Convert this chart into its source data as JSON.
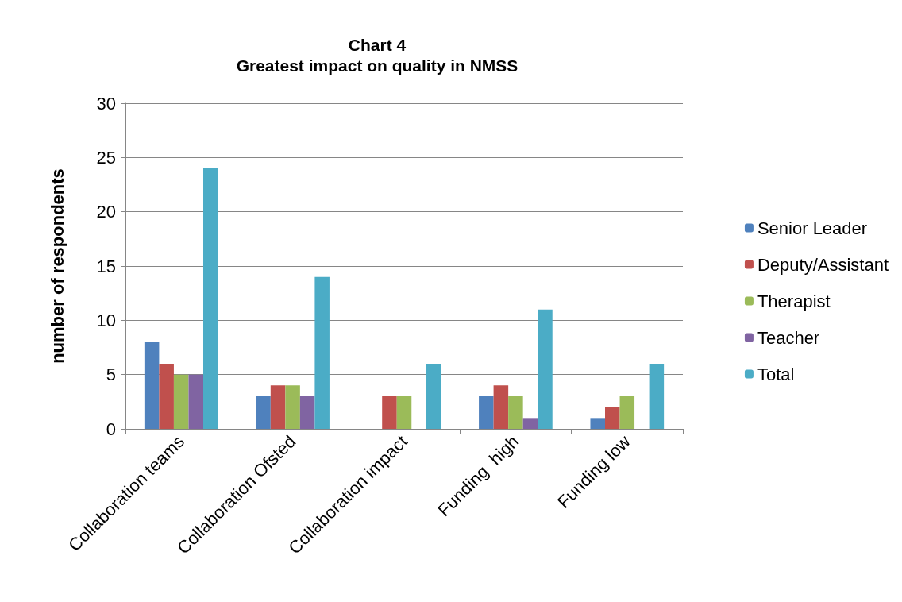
{
  "chart_data": {
    "type": "bar",
    "title": "Chart 4\nGreatest impact on quality in NMSS",
    "ylabel": "number of respondents",
    "categories": [
      "Collaboration teams",
      "Collaboration Ofsted",
      "Collaboration impact",
      "Funding  high",
      "Funding low"
    ],
    "series": [
      {
        "name": "Senior Leader",
        "color": "#4f81bd",
        "values": [
          8,
          3,
          0,
          3,
          1
        ]
      },
      {
        "name": "Deputy/Assistant",
        "color": "#c0504d",
        "values": [
          6,
          4,
          3,
          4,
          2
        ]
      },
      {
        "name": "Therapist",
        "color": "#9bbb59",
        "values": [
          5,
          4,
          3,
          3,
          3
        ]
      },
      {
        "name": "Teacher",
        "color": "#8064a2",
        "values": [
          5,
          3,
          0,
          1,
          0
        ]
      },
      {
        "name": "Total",
        "color": "#4bacc6",
        "values": [
          24,
          14,
          6,
          11,
          6
        ]
      }
    ],
    "ylim": [
      0,
      30
    ],
    "yticks": [
      0,
      5,
      10,
      15,
      20,
      25,
      30
    ],
    "grid": "y",
    "legend": "right"
  }
}
